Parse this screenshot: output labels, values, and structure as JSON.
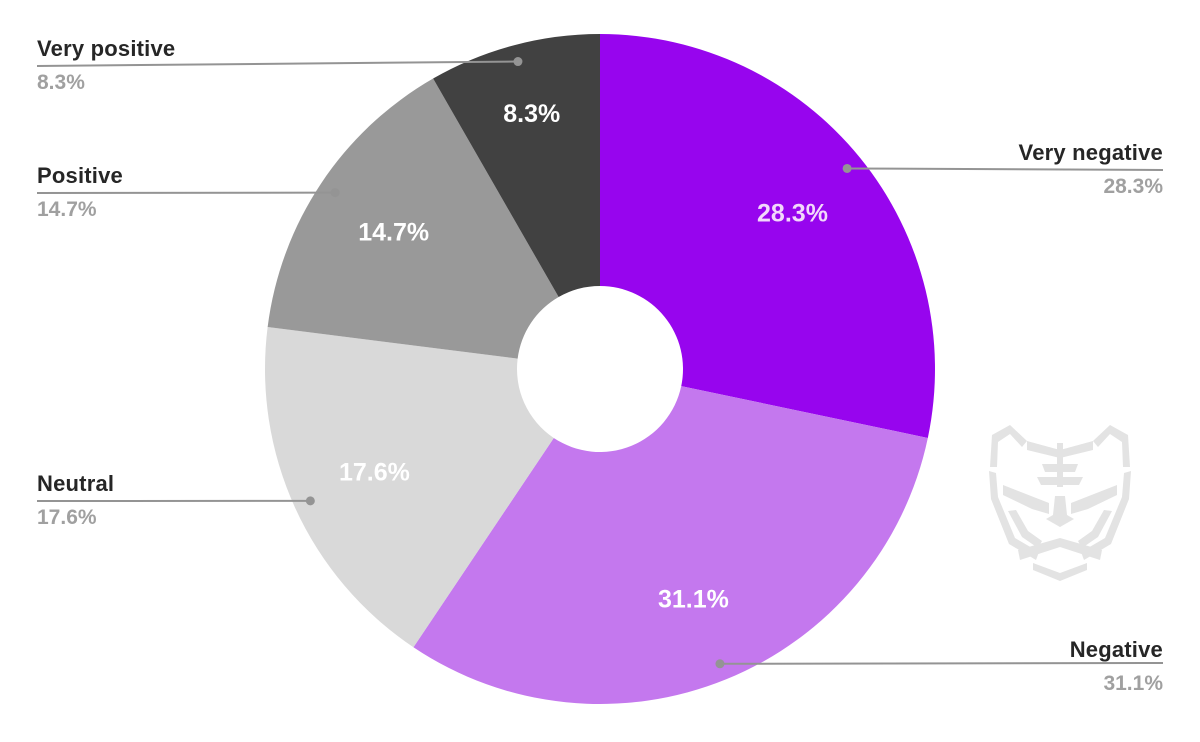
{
  "chart_data": {
    "type": "pie",
    "subtype": "donut",
    "title": "",
    "unit": "%",
    "total": 100,
    "start_angle_deg": 0,
    "direction": "clockwise",
    "legend_position": "outside-callouts",
    "slices": [
      {
        "label": "Very negative",
        "value": 28.3,
        "pct_label": "28.3%",
        "color": "#9705ee",
        "value_label_color": "#f2d8fb"
      },
      {
        "label": "Negative",
        "value": 31.1,
        "pct_label": "31.1%",
        "color": "#c478ee",
        "value_label_color": "#ffffff"
      },
      {
        "label": "Neutral",
        "value": 17.6,
        "pct_label": "17.6%",
        "color": "#d9d9d9",
        "value_label_color": "#ffffff"
      },
      {
        "label": "Positive",
        "value": 14.7,
        "pct_label": "14.7%",
        "color": "#999999",
        "value_label_color": "#ffffff"
      },
      {
        "label": "Very positive",
        "value": 8.3,
        "pct_label": "8.3%",
        "color": "#414141",
        "value_label_color": "#ffffff"
      }
    ]
  },
  "colors": {
    "background": "#ffffff",
    "callout_line": "#949494",
    "callout_title_text": "#262626",
    "callout_pct_text": "#a0a0a0",
    "watermark": "#e3e3e3"
  },
  "watermark": {
    "name": "tiger-logo"
  }
}
